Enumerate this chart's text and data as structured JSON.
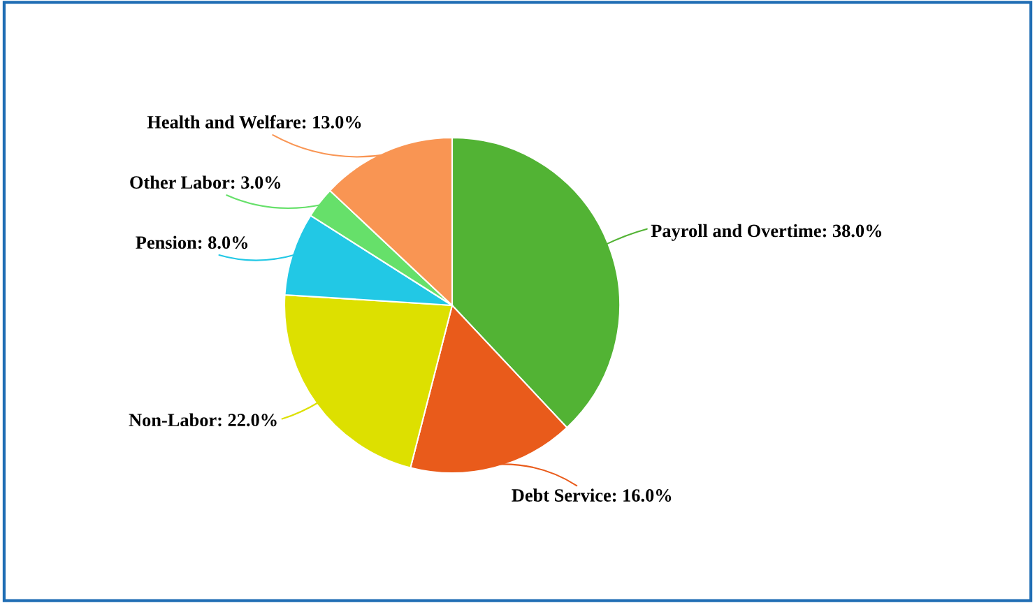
{
  "chart_data": {
    "type": "pie",
    "categories": [
      "Payroll and Overtime",
      "Debt Service",
      "Non-Labor",
      "Pension",
      "Other Labor",
      "Health and Welfare"
    ],
    "values": [
      38.0,
      16.0,
      22.0,
      8.0,
      3.0,
      13.0
    ],
    "value_labels": [
      "38.0%",
      "16.0%",
      "22.0%",
      "8.0%",
      "3.0%",
      "13.0%"
    ],
    "colors": [
      "#52b334",
      "#e95b1b",
      "#dde000",
      "#22c8e5",
      "#66e06a",
      "#f99553"
    ],
    "legend": false
  }
}
